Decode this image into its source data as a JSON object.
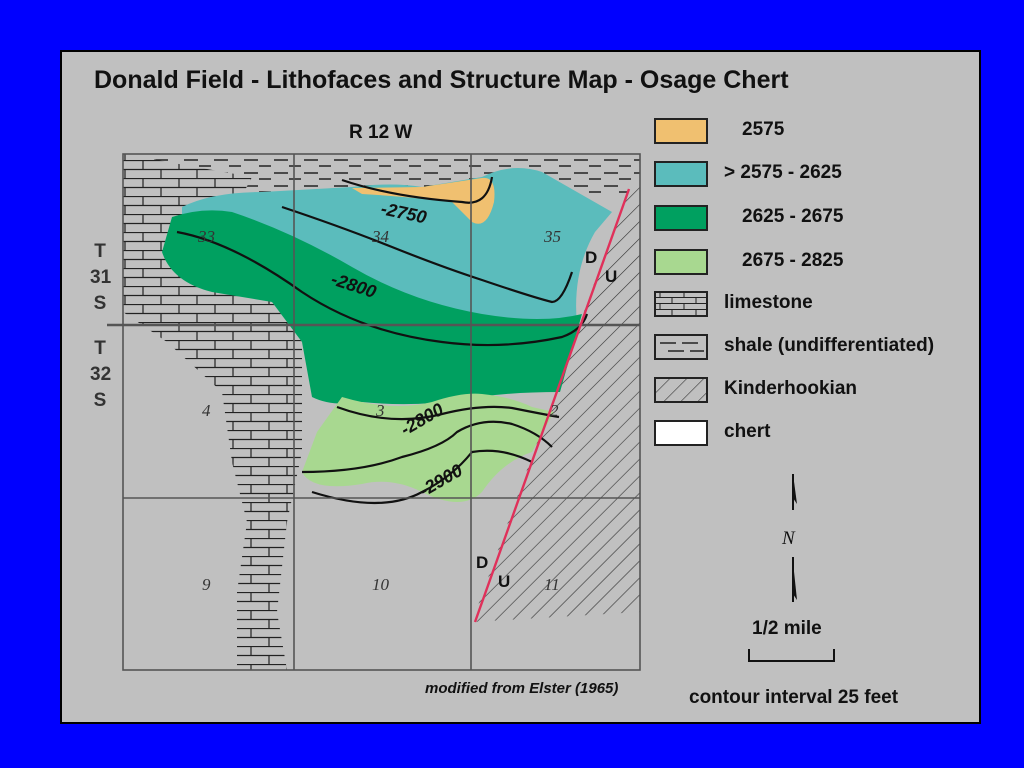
{
  "title": "Donald Field - Lithofaces and Structure Map - Osage Chert",
  "range_label": "R 12 W",
  "township_north": [
    "T",
    "31",
    "S"
  ],
  "township_south": [
    "T",
    "32",
    "S"
  ],
  "sections": [
    "33",
    "34",
    "35",
    "4",
    "3",
    "2",
    "9",
    "10",
    "11"
  ],
  "contour_labels": [
    "-2750",
    "-2800",
    "-2800",
    "-2900"
  ],
  "fault_labels": {
    "upper_d": "D",
    "upper_u": "U",
    "lower_d": "D",
    "lower_u": "U"
  },
  "legend": [
    {
      "label": "2575",
      "color": "#f0c070",
      "pattern": "fill"
    },
    {
      "label": "> 2575 - 2625",
      "color": "#5bbcbc",
      "pattern": "fill"
    },
    {
      "label": "2625 - 2675",
      "color": "#00a060",
      "pattern": "fill"
    },
    {
      "label": "2675 - 2825",
      "color": "#a8d890",
      "pattern": "fill"
    },
    {
      "label": "limestone",
      "color": "#c0c0c0",
      "pattern": "brick"
    },
    {
      "label": "shale (undifferentiated)",
      "color": "#c0c0c0",
      "pattern": "dash"
    },
    {
      "label": "Kinderhookian",
      "color": "#c0c0c0",
      "pattern": "hatch"
    },
    {
      "label": "chert",
      "color": "#ffffff",
      "pattern": "fill"
    }
  ],
  "north_label": "N",
  "scale_label": "1/2 mile",
  "contour_interval": "contour interval 25 feet",
  "credit": "modified from Elster (1965)",
  "fault_color": "#e0305a"
}
